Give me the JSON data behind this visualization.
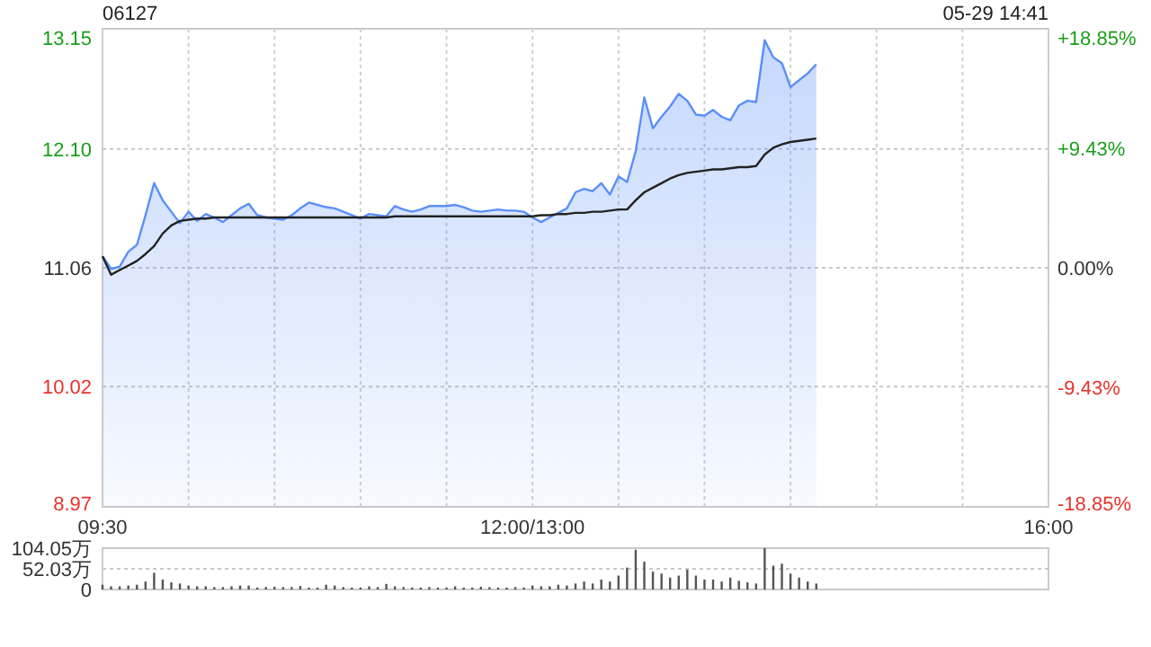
{
  "chart_data": [
    {
      "type": "line",
      "title": "06127",
      "annotations": [
        "05-29 14:41"
      ],
      "grid": true,
      "categories": [
        "09:30",
        null,
        null,
        null,
        null,
        null,
        null,
        null,
        null,
        null,
        null,
        null,
        null,
        null,
        null,
        null,
        null,
        null,
        null,
        null,
        null,
        null,
        null,
        null,
        null,
        null,
        null,
        null,
        null,
        null,
        null,
        null,
        null,
        null,
        null,
        null,
        null,
        null,
        null,
        null,
        null,
        null,
        null,
        null,
        null,
        null,
        null,
        null,
        null,
        null,
        "12:00/13:00",
        null,
        null,
        null,
        null,
        null,
        null,
        null,
        null,
        null,
        null,
        null,
        null,
        null,
        null,
        null,
        null,
        null,
        null,
        null,
        null,
        null,
        null,
        null,
        null,
        null,
        null,
        null,
        null,
        null,
        null,
        null,
        null,
        null,
        null,
        null,
        null,
        null,
        null,
        null,
        null,
        null,
        null,
        null,
        null,
        null,
        null,
        null,
        null,
        null,
        null,
        null,
        null,
        null,
        null,
        null,
        null,
        null,
        null,
        null,
        "16:00"
      ],
      "ylim": [
        8.97,
        13.15
      ],
      "yticks": [
        8.97,
        10.02,
        11.06,
        {
          "value": 12.1,
          "label": "12.10"
        },
        13.15
      ],
      "y2lim": [
        -18.85,
        18.85
      ],
      "y2ticks": [
        {
          "value": -18.85,
          "label": "-18.85%"
        },
        {
          "value": -9.43,
          "label": "-9.43%"
        },
        {
          "value": 0,
          "label": "0.00%"
        },
        {
          "value": 9.43,
          "label": "+9.43%"
        },
        {
          "value": 18.85,
          "label": "+18.85%"
        }
      ],
      "series": [
        {
          "type": "area",
          "color": "#5b8ff9",
          "values": [
            11.16,
            11.05,
            11.07,
            11.2,
            11.26,
            11.52,
            11.8,
            11.65,
            11.55,
            11.45,
            11.55,
            11.47,
            11.53,
            11.5,
            11.46,
            11.52,
            11.58,
            11.62,
            11.52,
            11.5,
            11.49,
            11.48,
            11.52,
            11.58,
            11.63,
            11.61,
            11.59,
            11.58,
            11.55,
            11.52,
            11.49,
            11.53,
            11.52,
            11.51,
            11.6,
            11.57,
            11.55,
            11.57,
            11.6,
            11.6,
            11.6,
            11.61,
            11.59,
            11.56,
            11.55,
            11.56,
            11.57,
            11.56,
            11.56,
            11.55,
            11.5,
            11.46,
            11.5,
            11.54,
            11.58,
            11.72,
            11.75,
            11.73,
            11.8,
            11.7,
            11.86,
            11.81,
            12.08,
            12.55,
            12.28,
            12.38,
            12.47,
            12.58,
            12.52,
            12.4,
            12.39,
            12.44,
            12.38,
            12.35,
            12.48,
            12.52,
            12.51,
            13.05,
            12.9,
            12.85,
            12.64,
            12.7,
            12.76,
            12.84,
            null,
            null,
            null,
            null,
            null,
            null,
            null,
            null,
            null,
            null,
            null,
            null,
            null,
            null,
            null,
            null,
            null,
            null,
            null,
            null,
            null,
            null,
            null,
            null,
            null,
            null,
            null
          ]
        },
        {
          "color": "#222222",
          "values": [
            11.16,
            11.0,
            11.04,
            11.08,
            11.12,
            11.18,
            11.25,
            11.36,
            11.43,
            11.47,
            11.48,
            11.49,
            11.49,
            11.5,
            11.5,
            11.5,
            11.5,
            11.5,
            11.5,
            11.5,
            11.5,
            11.5,
            11.5,
            11.5,
            11.5,
            11.5,
            11.5,
            11.5,
            11.5,
            11.5,
            11.5,
            11.5,
            11.5,
            11.5,
            11.51,
            11.51,
            11.51,
            11.51,
            11.51,
            11.51,
            11.51,
            11.51,
            11.51,
            11.51,
            11.51,
            11.51,
            11.51,
            11.51,
            11.51,
            11.51,
            11.51,
            11.52,
            11.52,
            11.53,
            11.53,
            11.54,
            11.54,
            11.55,
            11.55,
            11.56,
            11.57,
            11.57,
            11.65,
            11.72,
            11.76,
            11.8,
            11.84,
            11.87,
            11.89,
            11.9,
            11.91,
            11.92,
            11.92,
            11.93,
            11.94,
            11.94,
            11.95,
            12.05,
            12.11,
            12.14,
            12.16,
            12.17,
            12.18,
            12.19,
            null,
            null,
            null,
            null,
            null,
            null,
            null,
            null,
            null,
            null,
            null,
            null,
            null,
            null,
            null,
            null,
            null,
            null,
            null,
            null,
            null,
            null,
            null,
            null,
            null,
            null,
            null
          ]
        }
      ]
    },
    {
      "type": "bar",
      "grid": "y",
      "tick_labels": "y",
      "categories": [
        null,
        null,
        null,
        null,
        null,
        null,
        null,
        null,
        null,
        null,
        null,
        null,
        null,
        null,
        null,
        null,
        null,
        null,
        null,
        null,
        null,
        null,
        null,
        null,
        null,
        null,
        null,
        null,
        null,
        null,
        null,
        null,
        null,
        null,
        null,
        null,
        null,
        null,
        null,
        null,
        null,
        null,
        null,
        null,
        null,
        null,
        null,
        null,
        null,
        null,
        null,
        null,
        null,
        null,
        null,
        null,
        null,
        null,
        null,
        null,
        null,
        null,
        null,
        null,
        null,
        null,
        null,
        null,
        null,
        null,
        null,
        null,
        null,
        null,
        null,
        null,
        null,
        null,
        null,
        null,
        null,
        null,
        null,
        null,
        null,
        null,
        null,
        null,
        null,
        null,
        null,
        null,
        null,
        null,
        null,
        null,
        null,
        null,
        null,
        null,
        null,
        null,
        null,
        null,
        null,
        null,
        null,
        null,
        null,
        null,
        null
      ],
      "ylim": [
        0,
        104.05
      ],
      "yticks": [
        0,
        {
          "value": 52.03,
          "label": "52.03万"
        },
        {
          "value": 104.05,
          "label": "104.05万"
        }
      ],
      "series": [
        {
          "color": "#555555",
          "values": [
            12,
            8,
            8,
            10,
            12,
            20,
            42,
            25,
            18,
            15,
            10,
            8,
            8,
            6,
            6,
            8,
            10,
            10,
            5,
            6,
            7,
            6,
            6,
            9,
            5,
            5,
            12,
            10,
            6,
            5,
            5,
            8,
            6,
            14,
            8,
            6,
            5,
            5,
            6,
            5,
            5,
            8,
            5,
            5,
            7,
            6,
            5,
            5,
            6,
            5,
            10,
            8,
            8,
            12,
            10,
            15,
            20,
            15,
            25,
            20,
            35,
            55,
            100,
            70,
            45,
            40,
            30,
            35,
            50,
            35,
            25,
            25,
            20,
            30,
            22,
            18,
            15,
            104,
            60,
            65,
            40,
            30,
            20,
            15,
            null,
            null,
            null,
            null,
            null,
            null,
            null,
            null,
            null,
            null,
            null,
            null,
            null,
            null,
            null,
            null,
            null,
            null,
            null,
            null,
            null,
            null,
            null,
            null,
            null,
            null,
            null
          ]
        }
      ]
    }
  ]
}
